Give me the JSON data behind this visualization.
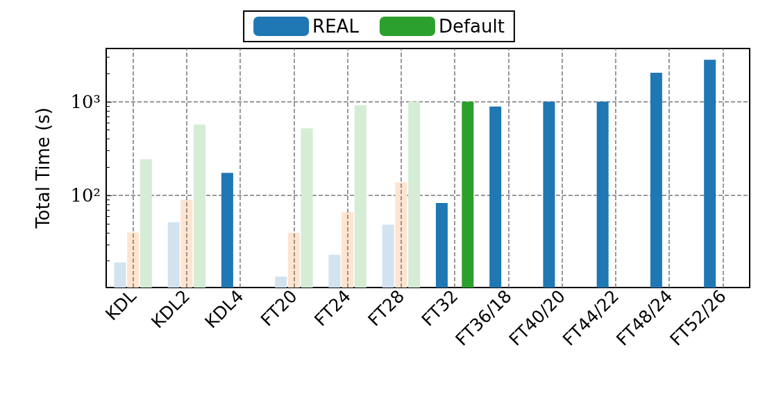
{
  "chart_data": {
    "type": "bar",
    "ylabel": "Total Time (s)",
    "categories": [
      "KDL",
      "KDL2",
      "KDL4",
      "FT20",
      "FT24",
      "FT28",
      "FT32",
      "FT36/18",
      "FT40/20",
      "FT44/22",
      "FT48/24",
      "FT52/26"
    ],
    "series": [
      {
        "name": "REAL",
        "color": "#1f77b4",
        "colors": [
          "#d2e3ef",
          "#d2e3ef",
          "#1f77b4",
          "#d2e3ef",
          "#d2e3ef",
          "#d2e3ef",
          "#1f77b4",
          "#1f77b4",
          "#1f77b4",
          "#1f77b4",
          "#1f77b4",
          "#1f77b4"
        ],
        "values": [
          19.3,
          51.8,
          174,
          13.6,
          23.3,
          48.8,
          83,
          889,
          1000,
          1000,
          2040,
          2810
        ]
      },
      {
        "color": "#ff7f0e",
        "colors": [
          "#ffe4cf",
          "#ffe4cf",
          null,
          "#ffe4cf",
          "#ffe4cf",
          "#ffe4cf",
          null,
          null,
          null,
          null,
          null,
          null
        ],
        "values": [
          40.3,
          90,
          null,
          40,
          66.6,
          138,
          null,
          null,
          null,
          null,
          null,
          null
        ]
      },
      {
        "name": "Default",
        "color": "#2ca02c",
        "colors": [
          "#d5ecd5",
          "#d5ecd5",
          null,
          "#d5ecd5",
          "#d5ecd5",
          "#d5ecd5",
          "#2ca02c",
          null,
          null,
          null,
          null,
          null
        ],
        "values": [
          244,
          571,
          null,
          520,
          914,
          1000,
          1000,
          null,
          null,
          null,
          null,
          null
        ]
      }
    ],
    "log": true,
    "ylim": [
      10.4,
      3700
    ],
    "yticks": [
      {
        "value": 100,
        "label": "10²"
      },
      {
        "value": 1000,
        "label": "10³"
      }
    ],
    "grid": true,
    "legend": "top"
  }
}
